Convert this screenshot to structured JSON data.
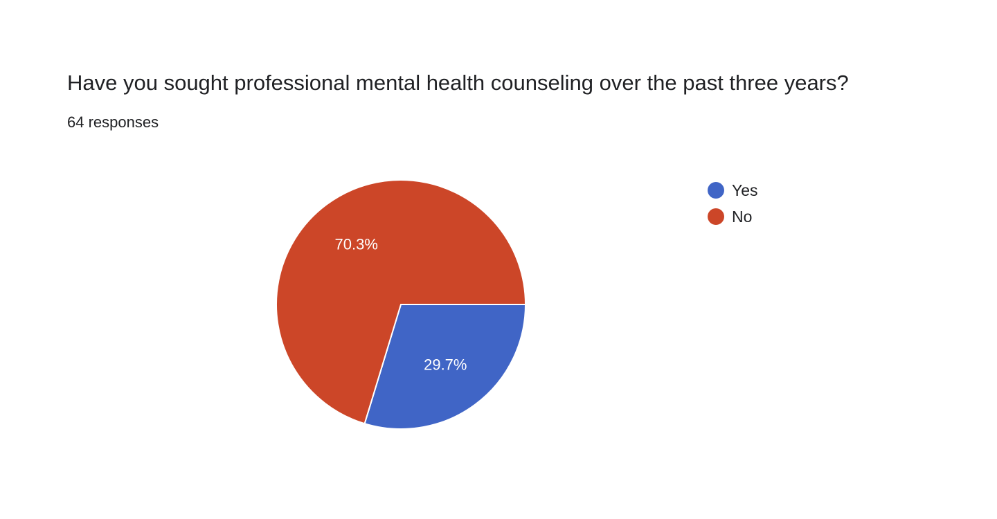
{
  "question": {
    "title": "Have you sought professional mental health counseling over the past three years?",
    "responses_label": "64 responses"
  },
  "chart_data": {
    "type": "pie",
    "categories": [
      "Yes",
      "No"
    ],
    "values": [
      29.7,
      70.3
    ],
    "value_labels": [
      "29.7%",
      "70.3%"
    ],
    "colors": [
      "#4065C6",
      "#CC4628"
    ],
    "legend_position": "right"
  },
  "legend": {
    "items": [
      {
        "label": "Yes",
        "color": "#4065C6"
      },
      {
        "label": "No",
        "color": "#CC4628"
      }
    ]
  }
}
